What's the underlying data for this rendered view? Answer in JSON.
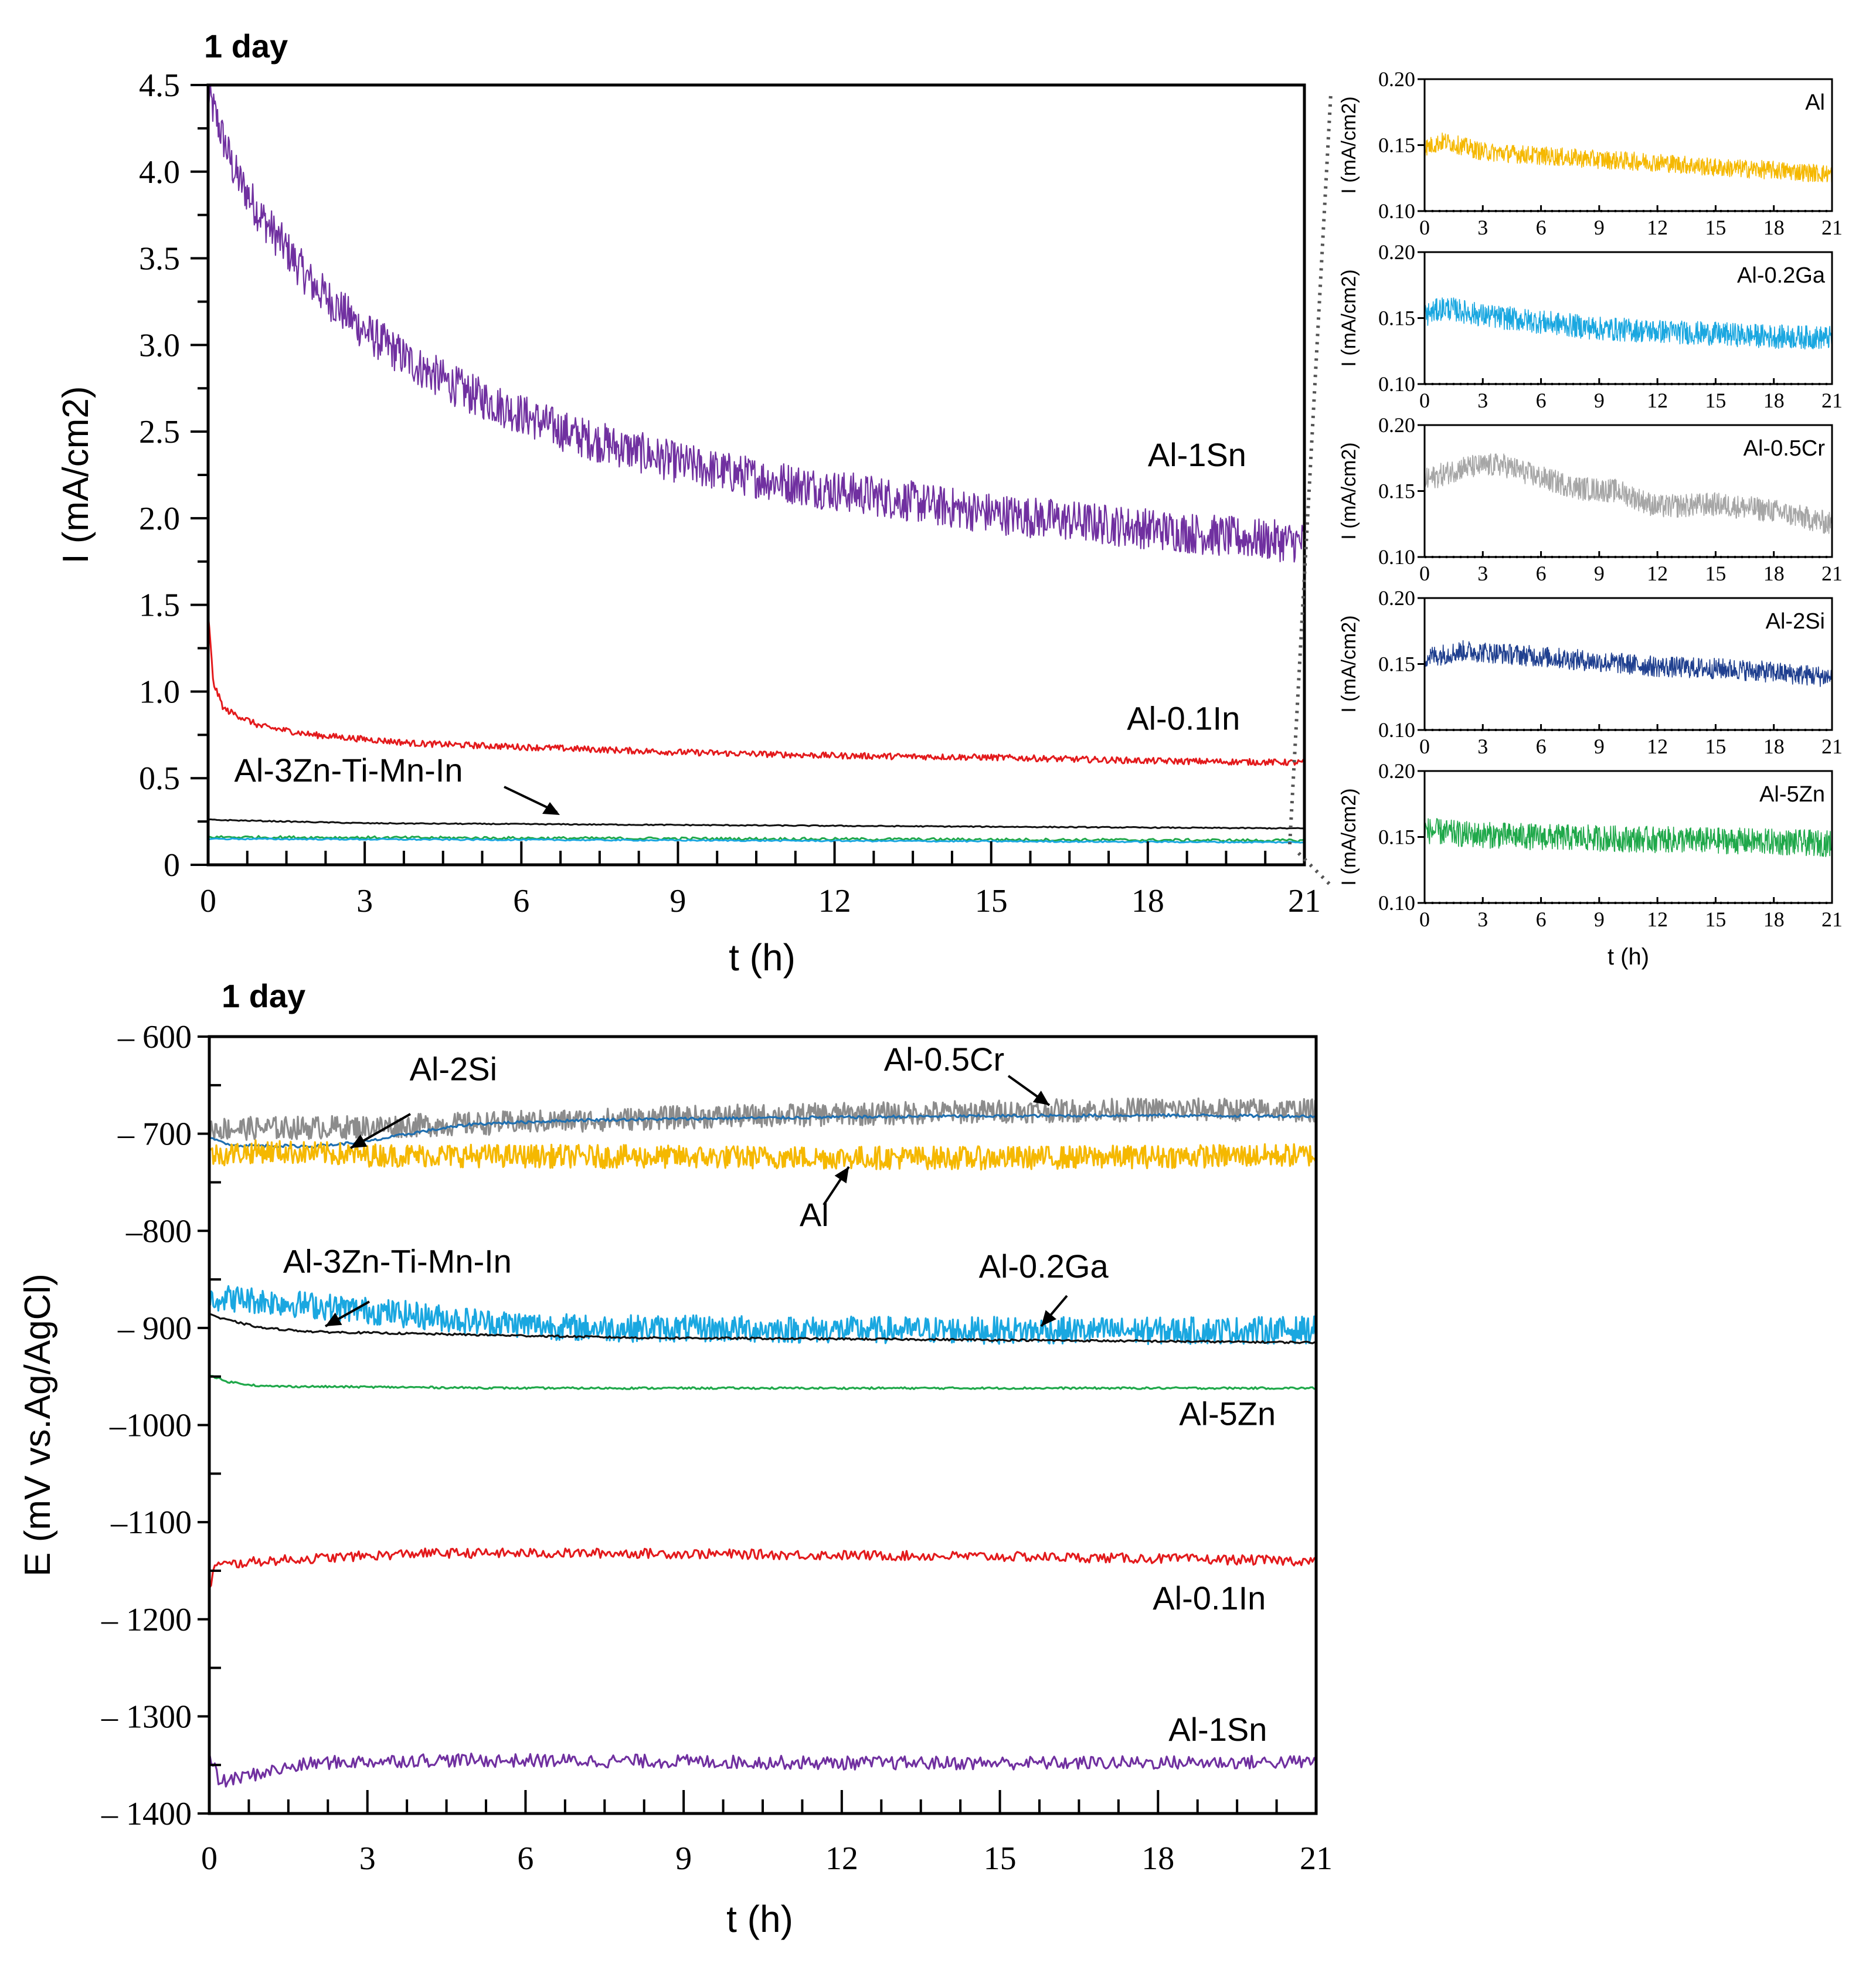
{
  "chart_data": [
    {
      "type": "line",
      "title": "1 day",
      "xlabel": "t (h)",
      "ylabel": "I (mA/cm2)",
      "xlim": [
        0,
        21
      ],
      "ylim": [
        0,
        4.5
      ],
      "xticks": [
        "0",
        "3",
        "6",
        "9",
        "12",
        "15",
        "18",
        "21"
      ],
      "yticks": [
        "0",
        "0.5",
        "1.0",
        "1.5",
        "2.0",
        "2.5",
        "3.0",
        "3.5",
        "4.0",
        "4.5"
      ],
      "grid": false,
      "series": [
        {
          "name": "Al-1Sn",
          "color": "#7030a0",
          "points": [
            [
              0,
              4.45
            ],
            [
              0.5,
              4.0
            ],
            [
              1,
              3.75
            ],
            [
              2,
              3.35
            ],
            [
              3,
              3.08
            ],
            [
              4,
              2.88
            ],
            [
              5,
              2.72
            ],
            [
              6,
              2.6
            ],
            [
              7,
              2.48
            ],
            [
              8,
              2.4
            ],
            [
              9,
              2.32
            ],
            [
              10,
              2.26
            ],
            [
              11,
              2.21
            ],
            [
              12,
              2.16
            ],
            [
              13,
              2.12
            ],
            [
              14,
              2.07
            ],
            [
              15,
              2.03
            ],
            [
              16,
              2.0
            ],
            [
              17,
              1.97
            ],
            [
              18,
              1.94
            ],
            [
              19,
              1.91
            ],
            [
              20,
              1.88
            ],
            [
              21,
              1.86
            ]
          ],
          "noise": 0.12
        },
        {
          "name": "Al-0.1In",
          "color": "#e31a1c",
          "points": [
            [
              0,
              1.45
            ],
            [
              0.1,
              1.05
            ],
            [
              0.3,
              0.9
            ],
            [
              1,
              0.8
            ],
            [
              2,
              0.75
            ],
            [
              4,
              0.7
            ],
            [
              6,
              0.68
            ],
            [
              9,
              0.65
            ],
            [
              12,
              0.63
            ],
            [
              15,
              0.62
            ],
            [
              18,
              0.6
            ],
            [
              21,
              0.59
            ]
          ],
          "noise": 0.018
        },
        {
          "name": "Al-3Zn-Ti-Mn-In",
          "color": "#111111",
          "points": [
            [
              0,
              0.26
            ],
            [
              3,
              0.24
            ],
            [
              9,
              0.23
            ],
            [
              15,
              0.22
            ],
            [
              21,
              0.21
            ]
          ],
          "noise": 0.003
        },
        {
          "name": "Al-5Zn",
          "color": "#1fa84a",
          "points": [
            [
              0,
              0.16
            ],
            [
              21,
              0.14
            ]
          ],
          "noise": 0.008
        },
        {
          "name": "Al-0.2Ga",
          "color": "#1aa7e0",
          "points": [
            [
              0,
              0.15
            ],
            [
              21,
              0.13
            ]
          ],
          "noise": 0.004
        }
      ],
      "annotations": [
        {
          "text": "Al-1Sn",
          "x": 18,
          "y": 2.3
        },
        {
          "text": "Al-0.1In",
          "x": 17.6,
          "y": 0.78
        },
        {
          "text": "Al-3Zn-Ti-Mn-In",
          "x": 0.5,
          "y": 0.48
        }
      ]
    },
    {
      "type": "line",
      "title": "",
      "xlabel": "t (h)",
      "ylabel": "I (mA/cm2)",
      "xlim": [
        0,
        21
      ],
      "ylim": [
        0.1,
        0.2
      ],
      "xticks": [
        "0",
        "3",
        "6",
        "9",
        "12",
        "15",
        "18",
        "21"
      ],
      "yticks": [
        "0.10",
        "0.15",
        "0.20"
      ],
      "insets": [
        {
          "name": "Al",
          "color": "#f5b800",
          "points": [
            [
              0,
              0.148
            ],
            [
              1,
              0.153
            ],
            [
              3,
              0.145
            ],
            [
              6,
              0.142
            ],
            [
              9,
              0.139
            ],
            [
              12,
              0.137
            ],
            [
              15,
              0.133
            ],
            [
              18,
              0.131
            ],
            [
              21,
              0.128
            ]
          ],
          "noise": 0.007
        },
        {
          "name": "Al-0.2Ga",
          "color": "#1aa7e0",
          "points": [
            [
              0,
              0.152
            ],
            [
              1,
              0.158
            ],
            [
              3,
              0.152
            ],
            [
              6,
              0.147
            ],
            [
              9,
              0.142
            ],
            [
              12,
              0.14
            ],
            [
              15,
              0.138
            ],
            [
              18,
              0.136
            ],
            [
              21,
              0.135
            ]
          ],
          "noise": 0.009
        },
        {
          "name": "Al-0.5Cr",
          "color": "#a6a6a6",
          "points": [
            [
              0,
              0.158
            ],
            [
              2,
              0.168
            ],
            [
              4,
              0.17
            ],
            [
              6,
              0.16
            ],
            [
              8,
              0.152
            ],
            [
              10,
              0.15
            ],
            [
              12,
              0.138
            ],
            [
              15,
              0.14
            ],
            [
              18,
              0.135
            ],
            [
              21,
              0.125
            ]
          ],
          "noise": 0.009
        },
        {
          "name": "Al-2Si",
          "color": "#1f3f8f",
          "points": [
            [
              0,
              0.155
            ],
            [
              2,
              0.16
            ],
            [
              4,
              0.158
            ],
            [
              8,
              0.153
            ],
            [
              12,
              0.148
            ],
            [
              16,
              0.146
            ],
            [
              21,
              0.14
            ]
          ],
          "noise": 0.008
        },
        {
          "name": "Al-5Zn",
          "color": "#1fa84a",
          "points": [
            [
              0,
              0.155
            ],
            [
              2,
              0.152
            ],
            [
              6,
              0.15
            ],
            [
              12,
              0.148
            ],
            [
              16,
              0.147
            ],
            [
              21,
              0.145
            ]
          ],
          "noise": 0.01
        }
      ]
    },
    {
      "type": "line",
      "title": "1 day",
      "xlabel": "t (h)",
      "ylabel": "E (mV vs.Ag/AgCl)",
      "xlim": [
        0,
        21
      ],
      "ylim": [
        -1400,
        -600
      ],
      "xticks": [
        "0",
        "3",
        "6",
        "9",
        "12",
        "15",
        "18",
        "21"
      ],
      "yticks": [
        "– 600",
        "– 700",
        "–800",
        "– 900",
        "–1000",
        "–1100",
        "– 1200",
        "– 1300",
        "– 1400"
      ],
      "grid": false,
      "series": [
        {
          "name": "Al-0.5Cr",
          "color": "#8c8c8c",
          "points": [
            [
              0,
              -695
            ],
            [
              3,
              -693
            ],
            [
              6,
              -688
            ],
            [
              9,
              -683
            ],
            [
              12,
              -680
            ],
            [
              15,
              -677
            ],
            [
              18,
              -675
            ],
            [
              21,
              -676
            ]
          ],
          "noise": 12
        },
        {
          "name": "Al-2Si",
          "color": "#1f6fb0",
          "points": [
            [
              0,
              -705
            ],
            [
              0.5,
              -712
            ],
            [
              2,
              -713
            ],
            [
              3,
              -708
            ],
            [
              4,
              -698
            ],
            [
              5,
              -690
            ],
            [
              7,
              -686
            ],
            [
              10,
              -684
            ],
            [
              14,
              -682
            ],
            [
              18,
              -681
            ],
            [
              21,
              -682
            ]
          ],
          "noise": 1.5
        },
        {
          "name": "Al",
          "color": "#f5b800",
          "points": [
            [
              0,
              -722
            ],
            [
              1,
              -718
            ],
            [
              3,
              -722
            ],
            [
              9,
              -724
            ],
            [
              15,
              -725
            ],
            [
              21,
              -722
            ]
          ],
          "noise": 12
        },
        {
          "name": "Al-0.2Ga",
          "color": "#1aa7e0",
          "points": [
            [
              0,
              -868
            ],
            [
              1,
              -872
            ],
            [
              3,
              -882
            ],
            [
              5,
              -893
            ],
            [
              7,
              -900
            ],
            [
              12,
              -902
            ],
            [
              18,
              -903
            ],
            [
              21,
              -902
            ]
          ],
          "noise": 14
        },
        {
          "name": "Al-3Zn-Ti-Mn-In",
          "color": "#111111",
          "points": [
            [
              0,
              -885
            ],
            [
              0.2,
              -890
            ],
            [
              1,
              -900
            ],
            [
              2,
              -904
            ],
            [
              4,
              -906
            ],
            [
              8,
              -910
            ],
            [
              14,
              -912
            ],
            [
              21,
              -915
            ]
          ],
          "noise": 1
        },
        {
          "name": "Al-5Zn",
          "color": "#1fa84a",
          "points": [
            [
              0,
              -948
            ],
            [
              0.3,
              -955
            ],
            [
              1,
              -960
            ],
            [
              6,
              -962
            ],
            [
              21,
              -962
            ]
          ],
          "noise": 1
        },
        {
          "name": "Al-0.1In",
          "color": "#e31a1c",
          "points": [
            [
              0,
              -1170
            ],
            [
              0.1,
              -1145
            ],
            [
              1,
              -1140
            ],
            [
              4,
              -1132
            ],
            [
              8,
              -1132
            ],
            [
              12,
              -1134
            ],
            [
              16,
              -1136
            ],
            [
              21,
              -1140
            ]
          ],
          "noise": 5
        },
        {
          "name": "Al-1Sn",
          "color": "#7030a0",
          "points": [
            [
              0,
              -1340
            ],
            [
              0.2,
              -1368
            ],
            [
              1,
              -1358
            ],
            [
              2,
              -1348
            ],
            [
              4,
              -1345
            ],
            [
              8,
              -1346
            ],
            [
              12,
              -1348
            ],
            [
              16,
              -1348
            ],
            [
              21,
              -1347
            ]
          ],
          "noise": 7
        }
      ],
      "annotations": [
        {
          "text": "Al-2Si",
          "x": 3.8,
          "y": -645
        },
        {
          "text": "Al-0.5Cr",
          "x": 12.8,
          "y": -635
        },
        {
          "text": "Al",
          "x": 11.2,
          "y": -795
        },
        {
          "text": "Al-3Zn-Ti-Mn-In",
          "x": 1.4,
          "y": -843
        },
        {
          "text": "Al-0.2Ga",
          "x": 14.6,
          "y": -848
        },
        {
          "text": "Al-5Zn",
          "x": 18.4,
          "y": -1000
        },
        {
          "text": "Al-0.1In",
          "x": 17.9,
          "y": -1190
        },
        {
          "text": "Al-1Sn",
          "x": 18.2,
          "y": -1325
        }
      ]
    }
  ]
}
